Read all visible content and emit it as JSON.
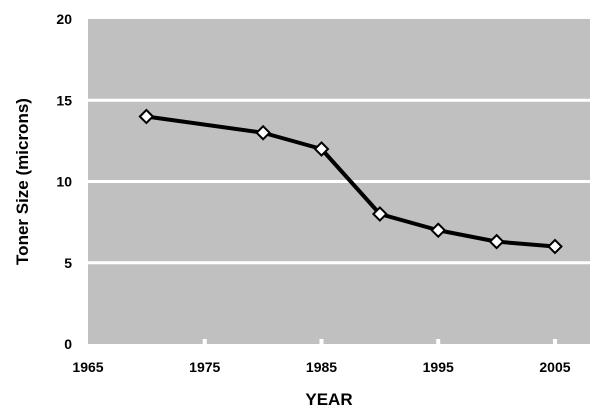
{
  "chart_data": {
    "type": "line",
    "title": "",
    "xlabel": "YEAR",
    "ylabel": "Toner Size (microns)",
    "xlim": [
      1965,
      2008
    ],
    "ylim": [
      0,
      20
    ],
    "x_ticks": [
      "1965",
      "1975",
      "1985",
      "1995",
      "2005"
    ],
    "y_ticks": [
      "0",
      "5",
      "10",
      "15",
      "20"
    ],
    "grid": true,
    "legend": "none",
    "series": [
      {
        "x": [
          1970,
          1980,
          1985,
          1990,
          1995,
          2000,
          2005
        ],
        "y": [
          14,
          13,
          12,
          8,
          7,
          6.3,
          6
        ]
      }
    ],
    "colors": {
      "plot_background": "#c0c0c0",
      "gridline": "#ffffff",
      "line": "#000000",
      "marker_fill": "#ffffff"
    }
  }
}
